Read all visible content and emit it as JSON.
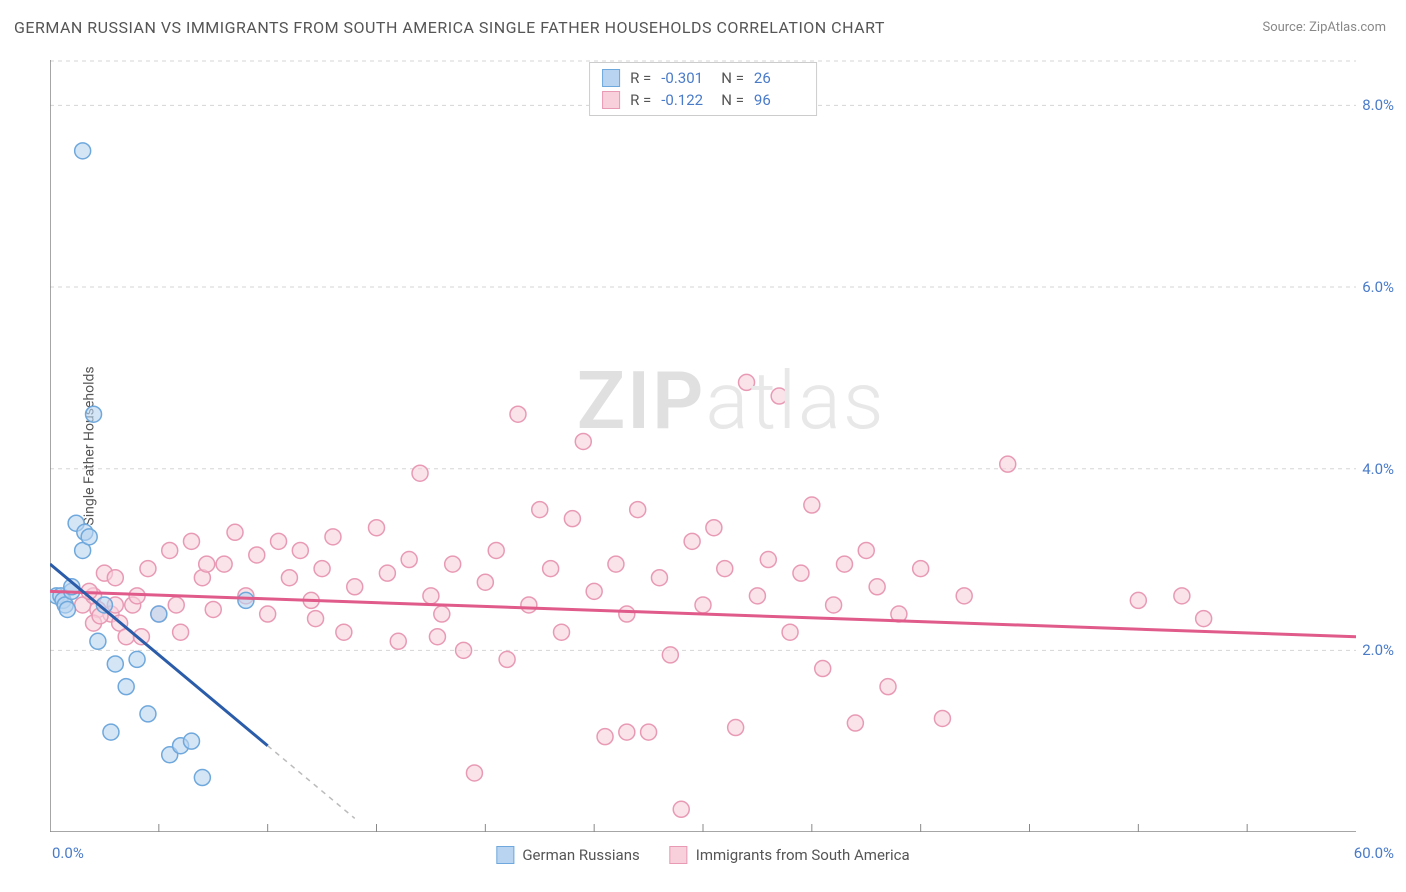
{
  "title": "GERMAN RUSSIAN VS IMMIGRANTS FROM SOUTH AMERICA SINGLE FATHER HOUSEHOLDS CORRELATION CHART",
  "source": "Source: ZipAtlas.com",
  "y_axis_label": "Single Father Households",
  "watermark_bold": "ZIP",
  "watermark_light": "atlas",
  "chart": {
    "type": "scatter",
    "xlim": [
      0,
      60
    ],
    "ylim": [
      0,
      8.5
    ],
    "x_min_label": "0.0%",
    "x_max_label": "60.0%",
    "y_ticks": [
      2.0,
      4.0,
      6.0,
      8.0
    ],
    "y_tick_labels": [
      "2.0%",
      "4.0%",
      "6.0%",
      "8.0%"
    ],
    "x_minor_ticks": [
      5,
      10,
      15,
      20,
      25,
      30,
      35,
      40,
      45,
      50,
      55
    ],
    "grid_color": "#d5d5d5",
    "axis_color": "#888888",
    "background_color": "#ffffff",
    "marker_radius": 8,
    "marker_stroke_width": 1.5,
    "line_width": 3,
    "series": [
      {
        "name": "German Russians",
        "color_fill": "#b8d4f0",
        "color_stroke": "#6fa8dc",
        "line_color": "#2a5caa",
        "r_value": "-0.301",
        "n_value": "26",
        "trend_line": {
          "x1": 0,
          "y1": 2.95,
          "x2": 10,
          "y2": 0.95
        },
        "trend_dash": {
          "x1": 10,
          "y1": 0.95,
          "x2": 14,
          "y2": 0.15
        },
        "points": [
          [
            0.3,
            2.6
          ],
          [
            0.5,
            2.6
          ],
          [
            0.6,
            2.55
          ],
          [
            0.7,
            2.5
          ],
          [
            0.8,
            2.45
          ],
          [
            1.0,
            2.65
          ],
          [
            1.0,
            2.7
          ],
          [
            1.2,
            3.4
          ],
          [
            1.5,
            3.1
          ],
          [
            1.6,
            3.3
          ],
          [
            1.8,
            3.25
          ],
          [
            1.5,
            7.5
          ],
          [
            2.0,
            4.6
          ],
          [
            2.2,
            2.1
          ],
          [
            2.5,
            2.5
          ],
          [
            2.8,
            1.1
          ],
          [
            3.0,
            1.85
          ],
          [
            3.5,
            1.6
          ],
          [
            4.0,
            1.9
          ],
          [
            4.5,
            1.3
          ],
          [
            5.0,
            2.4
          ],
          [
            5.5,
            0.85
          ],
          [
            6.0,
            0.95
          ],
          [
            6.5,
            1.0
          ],
          [
            7.0,
            0.6
          ],
          [
            9.0,
            2.55
          ]
        ]
      },
      {
        "name": "Immigrants from South America",
        "color_fill": "#f8d0dc",
        "color_stroke": "#e89ab5",
        "line_color": "#e05a8a",
        "r_value": "-0.122",
        "n_value": "96",
        "trend_line": {
          "x1": 0,
          "y1": 2.65,
          "x2": 60,
          "y2": 2.15
        },
        "points": [
          [
            1.5,
            2.5
          ],
          [
            2.0,
            2.6
          ],
          [
            2.2,
            2.45
          ],
          [
            2.5,
            2.85
          ],
          [
            2.8,
            2.4
          ],
          [
            3.0,
            2.8
          ],
          [
            3.2,
            2.3
          ],
          [
            3.5,
            2.15
          ],
          [
            3.8,
            2.5
          ],
          [
            4.0,
            2.6
          ],
          [
            4.5,
            2.9
          ],
          [
            5.0,
            2.4
          ],
          [
            5.5,
            3.1
          ],
          [
            5.8,
            2.5
          ],
          [
            6.0,
            2.2
          ],
          [
            6.5,
            3.2
          ],
          [
            7.0,
            2.8
          ],
          [
            7.5,
            2.45
          ],
          [
            8.0,
            2.95
          ],
          [
            8.5,
            3.3
          ],
          [
            9.0,
            2.6
          ],
          [
            9.5,
            3.05
          ],
          [
            10.0,
            2.4
          ],
          [
            10.5,
            3.2
          ],
          [
            11.0,
            2.8
          ],
          [
            11.5,
            3.1
          ],
          [
            12.0,
            2.55
          ],
          [
            12.5,
            2.9
          ],
          [
            13.0,
            3.25
          ],
          [
            13.5,
            2.2
          ],
          [
            14.0,
            2.7
          ],
          [
            15.0,
            3.35
          ],
          [
            15.5,
            2.85
          ],
          [
            16.0,
            2.1
          ],
          [
            16.5,
            3.0
          ],
          [
            17.0,
            3.95
          ],
          [
            17.5,
            2.6
          ],
          [
            18.0,
            2.4
          ],
          [
            18.5,
            2.95
          ],
          [
            19.0,
            2.0
          ],
          [
            19.5,
            0.65
          ],
          [
            20.0,
            2.75
          ],
          [
            20.5,
            3.1
          ],
          [
            21.0,
            1.9
          ],
          [
            21.5,
            4.6
          ],
          [
            22.0,
            2.5
          ],
          [
            22.5,
            3.55
          ],
          [
            23.0,
            2.9
          ],
          [
            23.5,
            2.2
          ],
          [
            24.0,
            3.45
          ],
          [
            24.5,
            4.3
          ],
          [
            25.0,
            2.65
          ],
          [
            25.5,
            1.05
          ],
          [
            26.0,
            2.95
          ],
          [
            26.5,
            2.4
          ],
          [
            27.0,
            3.55
          ],
          [
            27.5,
            1.1
          ],
          [
            28.0,
            2.8
          ],
          [
            28.5,
            1.95
          ],
          [
            29.0,
            0.25
          ],
          [
            29.5,
            3.2
          ],
          [
            30.0,
            2.5
          ],
          [
            30.5,
            3.35
          ],
          [
            31.0,
            2.9
          ],
          [
            31.5,
            1.15
          ],
          [
            32.0,
            4.95
          ],
          [
            32.5,
            2.6
          ],
          [
            33.0,
            3.0
          ],
          [
            33.5,
            4.8
          ],
          [
            34.0,
            2.2
          ],
          [
            34.5,
            2.85
          ],
          [
            35.0,
            3.6
          ],
          [
            35.5,
            1.8
          ],
          [
            36.0,
            2.5
          ],
          [
            36.5,
            2.95
          ],
          [
            37.0,
            1.2
          ],
          [
            37.5,
            3.1
          ],
          [
            38.0,
            2.7
          ],
          [
            38.5,
            1.6
          ],
          [
            39.0,
            2.4
          ],
          [
            40.0,
            2.9
          ],
          [
            41.0,
            1.25
          ],
          [
            42.0,
            2.6
          ],
          [
            44.0,
            4.05
          ],
          [
            50.0,
            2.55
          ],
          [
            52.0,
            2.6
          ],
          [
            53.0,
            2.35
          ],
          [
            2.0,
            2.3
          ],
          [
            3.0,
            2.5
          ],
          [
            1.8,
            2.65
          ],
          [
            2.3,
            2.38
          ],
          [
            4.2,
            2.15
          ],
          [
            7.2,
            2.95
          ],
          [
            12.2,
            2.35
          ],
          [
            17.8,
            2.15
          ],
          [
            26.5,
            1.1
          ]
        ]
      }
    ]
  },
  "legend_bottom": {
    "item1": "German Russians",
    "item2": "Immigrants from South America"
  }
}
